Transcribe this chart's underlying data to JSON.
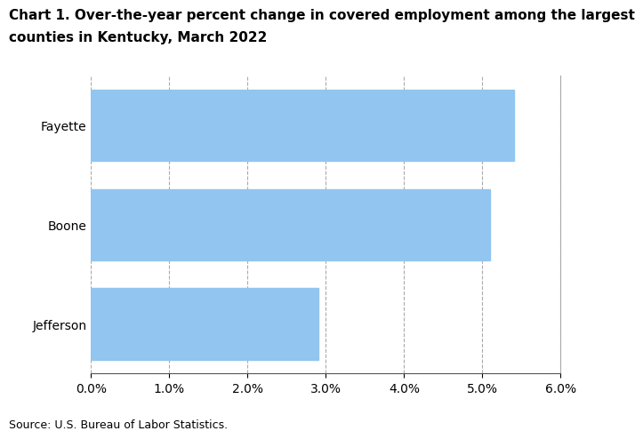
{
  "title_line1": "Chart 1. Over-the-year percent change in covered employment among the largest",
  "title_line2": "counties in Kentucky, March 2022",
  "categories": [
    "Jefferson",
    "Boone",
    "Fayette"
  ],
  "values": [
    0.029,
    0.051,
    0.054
  ],
  "bar_color": "#92C5F0",
  "xlim": [
    0,
    0.06
  ],
  "xticks": [
    0.0,
    0.01,
    0.02,
    0.03,
    0.04,
    0.05,
    0.06
  ],
  "source": "Source: U.S. Bureau of Labor Statistics.",
  "title_fontsize": 11,
  "tick_fontsize": 10,
  "source_fontsize": 9,
  "background_color": "#ffffff",
  "grid_color": "#aaaaaa",
  "bar_height": 0.72
}
